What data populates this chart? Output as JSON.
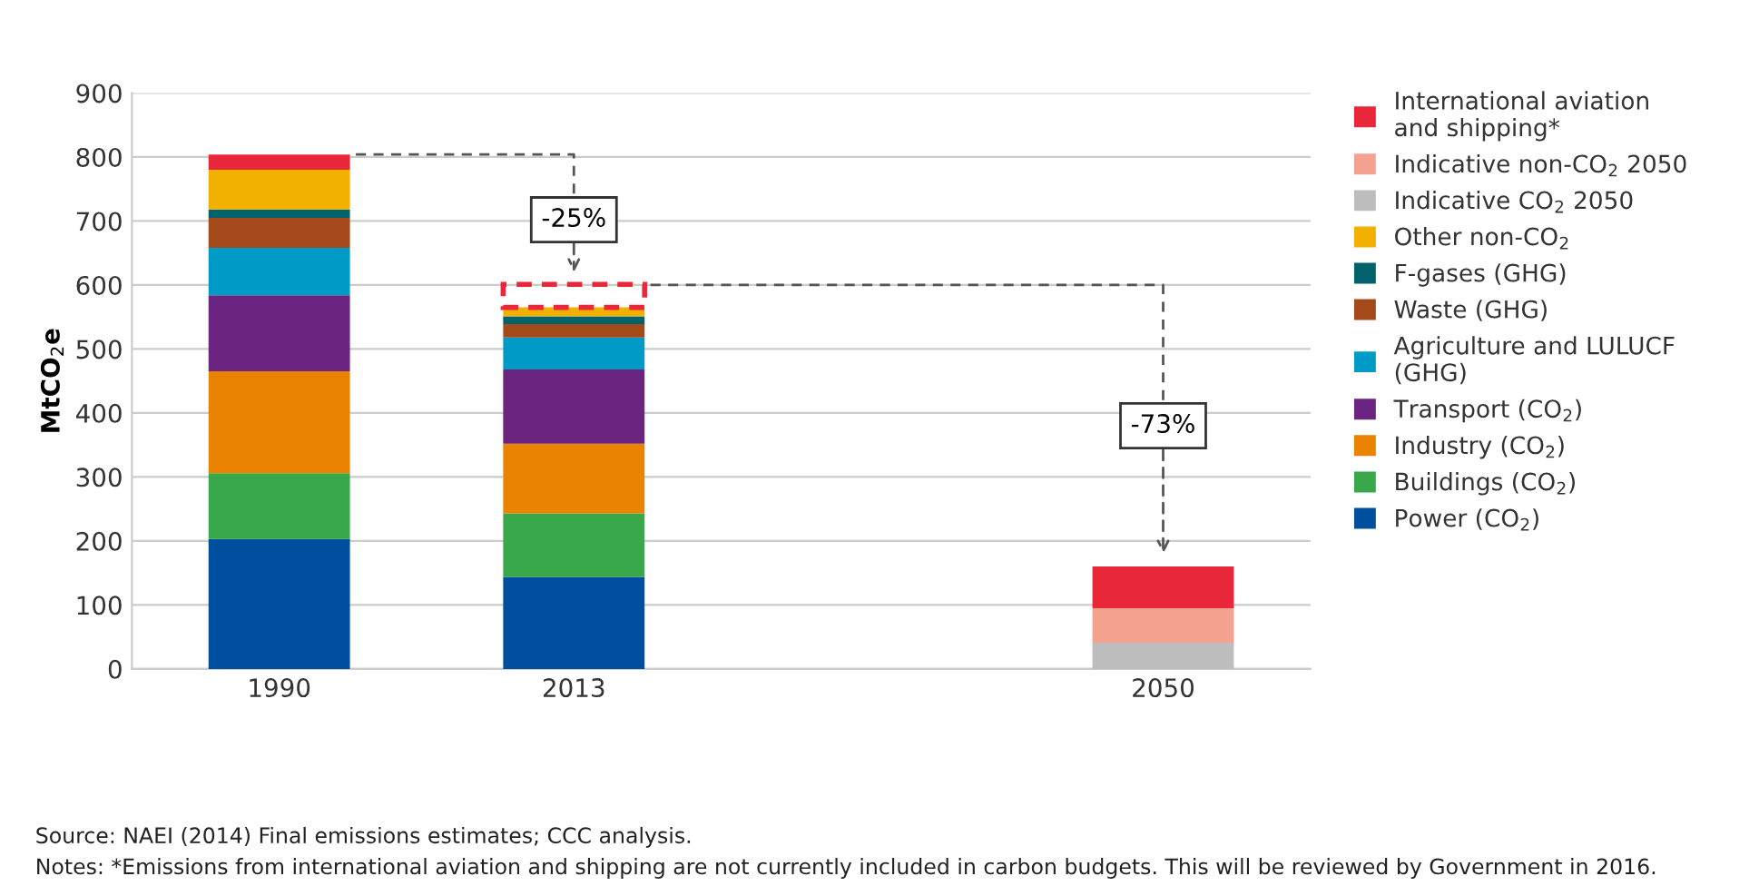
{
  "chart_data": {
    "type": "bar",
    "stacked": true,
    "ylabel": "MtCO$_{2}$e",
    "categories": [
      "1990",
      "2013",
      null,
      "2050"
    ],
    "series": [
      {
        "name": "Power (CO$_{2}$)",
        "color": "#004f9f",
        "values": [
          203,
          144,
          null,
          null
        ]
      },
      {
        "name": "Buildings (CO$_{2}$)",
        "color": "#38a84a",
        "values": [
          103,
          99,
          null,
          null
        ]
      },
      {
        "name": "Industry (CO$_{2}$)",
        "color": "#e98300",
        "values": [
          159,
          109,
          null,
          null
        ]
      },
      {
        "name": "Transport (CO$_{2}$)",
        "color": "#6b2480",
        "values": [
          119,
          116,
          null,
          null
        ]
      },
      {
        "name": "Agriculture and LULUCF\n(GHG)",
        "color": "#009ac7",
        "values": [
          74,
          50,
          null,
          null
        ]
      },
      {
        "name": "Waste (GHG)",
        "color": "#a4491a",
        "values": [
          47,
          21,
          null,
          null
        ]
      },
      {
        "name": "F-gases (GHG)",
        "color": "#00626b",
        "values": [
          13,
          12,
          null,
          null
        ]
      },
      {
        "name": "Other non-CO$_{2}$",
        "color": "#f2b000",
        "values": [
          62,
          14,
          null,
          null
        ]
      },
      {
        "name": "Indicative CO$_{2}$ 2050",
        "color": "#bdbdbd",
        "values": [
          null,
          null,
          null,
          41
        ]
      },
      {
        "name": "Indicative non-CO$_{2}$ 2050",
        "color": "#f4a28f",
        "values": [
          null,
          null,
          null,
          54
        ]
      },
      {
        "name": "International aviation\nand shipping*",
        "color": "#e8283a",
        "colors": [
          "#e8283a",
          null,
          null,
          "#e8283a"
        ],
        "values": [
          24,
          36,
          null,
          65
        ]
      }
    ],
    "ylim": [
      0,
      900
    ],
    "yticks": [
      0,
      100,
      200,
      300,
      400,
      500,
      600,
      700,
      800,
      900
    ],
    "grid": "y",
    "legend": "right",
    "annotations": [
      {
        "text": "-25%",
        "x": "2013",
        "y": 600
      },
      {
        "text": "-73%",
        "x": "2050",
        "y": 160
      },
      "Source: NAEI (2014) Final emissions estimates; CCC analysis.",
      "Notes: *Emissions from international aviation and shipping are not currently included in carbon budgets. This will be reviewed by Government in 2016."
    ]
  }
}
